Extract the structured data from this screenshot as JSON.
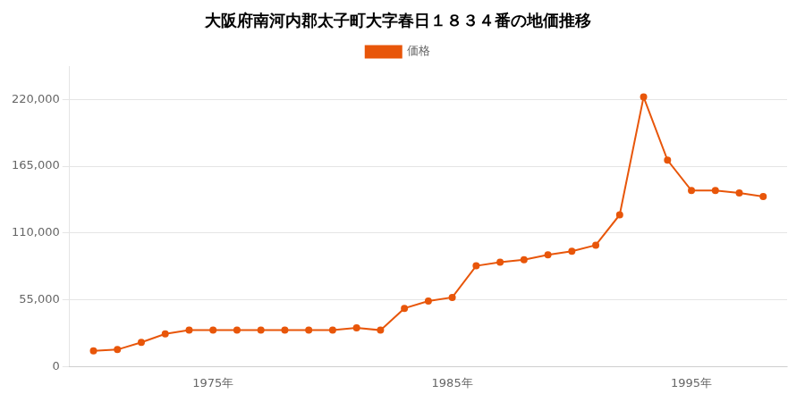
{
  "chart_data": {
    "type": "line",
    "title": "大阪府南河内郡太子町大字春日１８３４番の地価推移",
    "x": [
      1970,
      1971,
      1972,
      1973,
      1974,
      1975,
      1976,
      1977,
      1978,
      1979,
      1980,
      1981,
      1982,
      1983,
      1984,
      1985,
      1986,
      1987,
      1988,
      1989,
      1990,
      1991,
      1992,
      1993,
      1994,
      1995,
      1996,
      1997,
      1998
    ],
    "series": [
      {
        "name": "価格",
        "color": "#e8560a",
        "marker": "circle",
        "line_style": "solid",
        "values": [
          13000,
          14000,
          20000,
          27000,
          30000,
          30000,
          30000,
          30000,
          30000,
          30000,
          30000,
          32000,
          30000,
          48000,
          54000,
          57000,
          83000,
          86000,
          88000,
          92000,
          95000,
          100000,
          125000,
          222000,
          170000,
          145000,
          145000,
          143000,
          140000
        ]
      }
    ],
    "xlim": [
      1969,
      1999
    ],
    "xticks": [
      {
        "value": 1975,
        "label": "1975年"
      },
      {
        "value": 1985,
        "label": "1985年"
      },
      {
        "value": 1995,
        "label": "1995年"
      }
    ],
    "ylim": [
      0,
      247000
    ],
    "yticks": [
      0,
      {
        "value": 55000,
        "label": "55,000"
      },
      {
        "value": 110000,
        "label": "110,000"
      },
      {
        "value": 165000,
        "label": "165,000"
      },
      {
        "value": 220000,
        "label": "220,000"
      }
    ],
    "grid": "y",
    "legend": "top"
  }
}
